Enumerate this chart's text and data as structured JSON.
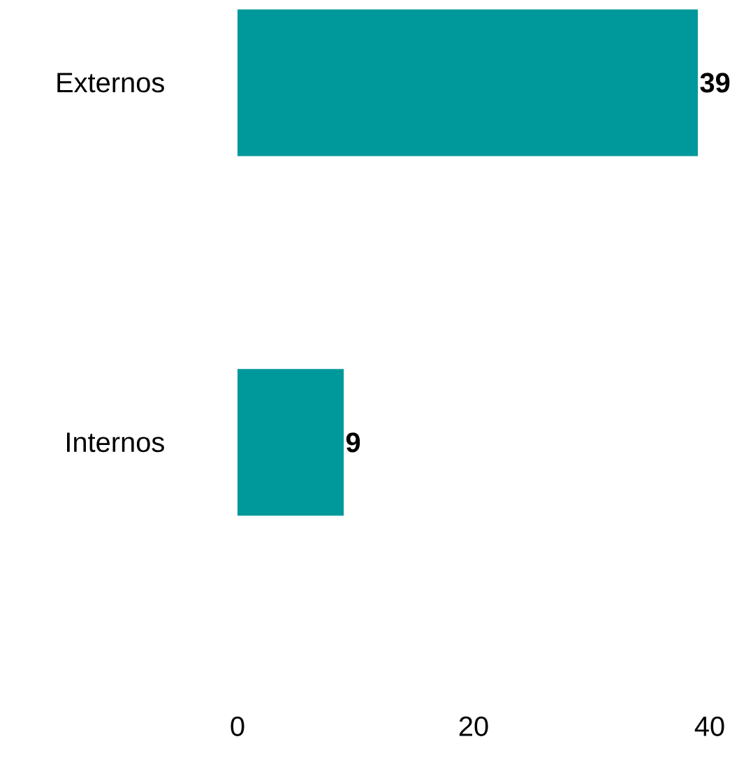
{
  "chart_data": {
    "type": "bar",
    "orientation": "horizontal",
    "categories": [
      "Externos",
      "Internos"
    ],
    "values": [
      39,
      9
    ],
    "color": "#00999b",
    "xlim": [
      0,
      40
    ],
    "xticks": [
      0,
      20,
      40
    ],
    "data_labels": true,
    "grid": false
  }
}
